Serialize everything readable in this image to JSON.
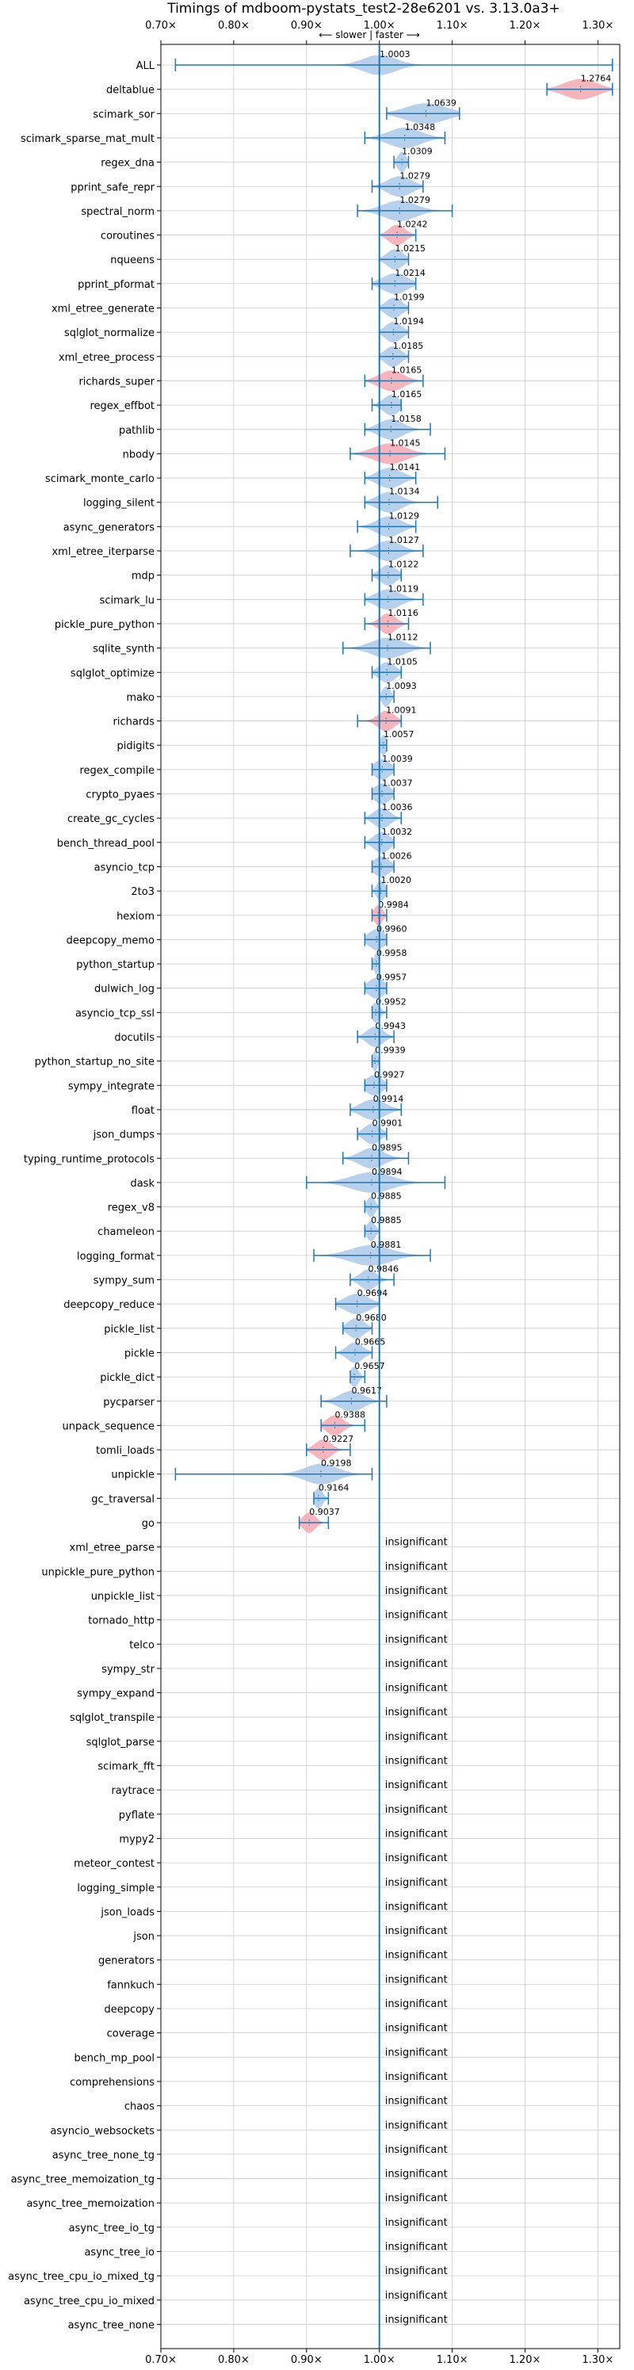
{
  "chart_data": {
    "type": "violin",
    "title": "Timings of mdboom-pystats_test2-28e6201 vs. 3.13.0a3+",
    "direction_hint": "⟵ slower | faster ⟶",
    "xlim": [
      0.7,
      1.33
    ],
    "xticks": [
      0.7,
      0.8,
      0.9,
      1.0,
      1.1,
      1.2,
      1.3
    ],
    "xtick_labels": [
      "0.70×",
      "0.80×",
      "0.90×",
      "1.00×",
      "1.10×",
      "1.20×",
      "1.30×"
    ],
    "reference_line": 1.0,
    "grid": true,
    "colors": {
      "faster": "#aac8e8",
      "slower": "#f4a7b0",
      "line": "#1f77b4",
      "grid": "#cccccc"
    },
    "insignificant_label": "insignificant",
    "benchmarks": [
      {
        "name": "ALL",
        "value": 1.0003,
        "label": "1.0003",
        "min": 0.72,
        "max": 1.32,
        "width": 0.04,
        "color": "faster"
      },
      {
        "name": "deltablue",
        "value": 1.2764,
        "label": "1.2764",
        "min": 1.23,
        "max": 1.32,
        "width": 0.04,
        "color": "slower"
      },
      {
        "name": "scimark_sor",
        "value": 1.0639,
        "label": "1.0639",
        "min": 1.01,
        "max": 1.11,
        "width": 0.05,
        "color": "faster"
      },
      {
        "name": "scimark_sparse_mat_mult",
        "value": 1.0348,
        "label": "1.0348",
        "min": 0.98,
        "max": 1.09,
        "width": 0.04,
        "color": "faster"
      },
      {
        "name": "regex_dna",
        "value": 1.0309,
        "label": "1.0309",
        "min": 1.02,
        "max": 1.04,
        "width": 0.01,
        "color": "faster"
      },
      {
        "name": "pprint_safe_repr",
        "value": 1.0279,
        "label": "1.0279",
        "min": 0.99,
        "max": 1.06,
        "width": 0.03,
        "color": "faster"
      },
      {
        "name": "spectral_norm",
        "value": 1.0279,
        "label": "1.0279",
        "min": 0.97,
        "max": 1.1,
        "width": 0.04,
        "color": "faster"
      },
      {
        "name": "coroutines",
        "value": 1.0242,
        "label": "1.0242",
        "min": 1.0,
        "max": 1.05,
        "width": 0.02,
        "color": "slower"
      },
      {
        "name": "nqueens",
        "value": 1.0215,
        "label": "1.0215",
        "min": 1.0,
        "max": 1.04,
        "width": 0.02,
        "color": "faster"
      },
      {
        "name": "pprint_pformat",
        "value": 1.0214,
        "label": "1.0214",
        "min": 0.99,
        "max": 1.05,
        "width": 0.03,
        "color": "faster"
      },
      {
        "name": "xml_etree_generate",
        "value": 1.0199,
        "label": "1.0199",
        "min": 1.0,
        "max": 1.04,
        "width": 0.02,
        "color": "faster"
      },
      {
        "name": "sqlglot_normalize",
        "value": 1.0194,
        "label": "1.0194",
        "min": 1.0,
        "max": 1.04,
        "width": 0.02,
        "color": "faster"
      },
      {
        "name": "xml_etree_process",
        "value": 1.0185,
        "label": "1.0185",
        "min": 1.0,
        "max": 1.04,
        "width": 0.02,
        "color": "faster"
      },
      {
        "name": "richards_super",
        "value": 1.0165,
        "label": "1.0165",
        "min": 0.98,
        "max": 1.06,
        "width": 0.03,
        "color": "slower"
      },
      {
        "name": "regex_effbot",
        "value": 1.0165,
        "label": "1.0165",
        "min": 0.99,
        "max": 1.03,
        "width": 0.02,
        "color": "faster"
      },
      {
        "name": "pathlib",
        "value": 1.0158,
        "label": "1.0158",
        "min": 0.98,
        "max": 1.07,
        "width": 0.03,
        "color": "faster"
      },
      {
        "name": "nbody",
        "value": 1.0145,
        "label": "1.0145",
        "min": 0.96,
        "max": 1.09,
        "width": 0.04,
        "color": "slower"
      },
      {
        "name": "scimark_monte_carlo",
        "value": 1.0141,
        "label": "1.0141",
        "min": 0.98,
        "max": 1.05,
        "width": 0.03,
        "color": "faster"
      },
      {
        "name": "logging_silent",
        "value": 1.0134,
        "label": "1.0134",
        "min": 0.98,
        "max": 1.08,
        "width": 0.03,
        "color": "faster"
      },
      {
        "name": "async_generators",
        "value": 1.0129,
        "label": "1.0129",
        "min": 0.97,
        "max": 1.05,
        "width": 0.03,
        "color": "faster"
      },
      {
        "name": "xml_etree_iterparse",
        "value": 1.0127,
        "label": "1.0127",
        "min": 0.96,
        "max": 1.06,
        "width": 0.03,
        "color": "faster"
      },
      {
        "name": "mdp",
        "value": 1.0122,
        "label": "1.0122",
        "min": 0.99,
        "max": 1.03,
        "width": 0.02,
        "color": "faster"
      },
      {
        "name": "scimark_lu",
        "value": 1.0119,
        "label": "1.0119",
        "min": 0.98,
        "max": 1.06,
        "width": 0.03,
        "color": "faster"
      },
      {
        "name": "pickle_pure_python",
        "value": 1.0116,
        "label": "1.0116",
        "min": 0.98,
        "max": 1.04,
        "width": 0.02,
        "color": "slower"
      },
      {
        "name": "sqlite_synth",
        "value": 1.0112,
        "label": "1.0112",
        "min": 0.95,
        "max": 1.07,
        "width": 0.04,
        "color": "faster"
      },
      {
        "name": "sqlglot_optimize",
        "value": 1.0105,
        "label": "1.0105",
        "min": 0.99,
        "max": 1.03,
        "width": 0.02,
        "color": "faster"
      },
      {
        "name": "mako",
        "value": 1.0093,
        "label": "1.0093",
        "min": 1.0,
        "max": 1.02,
        "width": 0.01,
        "color": "faster"
      },
      {
        "name": "richards",
        "value": 1.0091,
        "label": "1.0091",
        "min": 0.97,
        "max": 1.03,
        "width": 0.02,
        "color": "slower"
      },
      {
        "name": "pidigits",
        "value": 1.0057,
        "label": "1.0057",
        "min": 1.0,
        "max": 1.01,
        "width": 0.008,
        "color": "faster"
      },
      {
        "name": "regex_compile",
        "value": 1.0039,
        "label": "1.0039",
        "min": 0.99,
        "max": 1.02,
        "width": 0.02,
        "color": "faster"
      },
      {
        "name": "crypto_pyaes",
        "value": 1.0037,
        "label": "1.0037",
        "min": 0.99,
        "max": 1.02,
        "width": 0.02,
        "color": "faster"
      },
      {
        "name": "create_gc_cycles",
        "value": 1.0036,
        "label": "1.0036",
        "min": 0.98,
        "max": 1.03,
        "width": 0.02,
        "color": "faster"
      },
      {
        "name": "bench_thread_pool",
        "value": 1.0032,
        "label": "1.0032",
        "min": 0.98,
        "max": 1.02,
        "width": 0.02,
        "color": "faster"
      },
      {
        "name": "asyncio_tcp",
        "value": 1.0026,
        "label": "1.0026",
        "min": 0.99,
        "max": 1.02,
        "width": 0.02,
        "color": "faster"
      },
      {
        "name": "2to3",
        "value": 1.002,
        "label": "1.0020",
        "min": 0.99,
        "max": 1.01,
        "width": 0.01,
        "color": "faster"
      },
      {
        "name": "hexiom",
        "value": 0.9984,
        "label": "0.9984",
        "min": 0.99,
        "max": 1.01,
        "width": 0.01,
        "color": "slower"
      },
      {
        "name": "deepcopy_memo",
        "value": 0.996,
        "label": "0.9960",
        "min": 0.98,
        "max": 1.01,
        "width": 0.02,
        "color": "faster"
      },
      {
        "name": "python_startup",
        "value": 0.9958,
        "label": "0.9958",
        "min": 0.99,
        "max": 1.0,
        "width": 0.006,
        "color": "faster"
      },
      {
        "name": "dulwich_log",
        "value": 0.9957,
        "label": "0.9957",
        "min": 0.98,
        "max": 1.01,
        "width": 0.02,
        "color": "faster"
      },
      {
        "name": "asyncio_tcp_ssl",
        "value": 0.9952,
        "label": "0.9952",
        "min": 0.99,
        "max": 1.01,
        "width": 0.01,
        "color": "faster"
      },
      {
        "name": "docutils",
        "value": 0.9943,
        "label": "0.9943",
        "min": 0.97,
        "max": 1.02,
        "width": 0.02,
        "color": "faster"
      },
      {
        "name": "python_startup_no_site",
        "value": 0.9939,
        "label": "0.9939",
        "min": 0.99,
        "max": 1.0,
        "width": 0.006,
        "color": "faster"
      },
      {
        "name": "sympy_integrate",
        "value": 0.9927,
        "label": "0.9927",
        "min": 0.98,
        "max": 1.01,
        "width": 0.02,
        "color": "faster"
      },
      {
        "name": "float",
        "value": 0.9914,
        "label": "0.9914",
        "min": 0.96,
        "max": 1.03,
        "width": 0.03,
        "color": "faster"
      },
      {
        "name": "json_dumps",
        "value": 0.9901,
        "label": "0.9901",
        "min": 0.97,
        "max": 1.01,
        "width": 0.02,
        "color": "faster"
      },
      {
        "name": "typing_runtime_protocols",
        "value": 0.9895,
        "label": "0.9895",
        "min": 0.95,
        "max": 1.04,
        "width": 0.03,
        "color": "faster"
      },
      {
        "name": "dask",
        "value": 0.9894,
        "label": "0.9894",
        "min": 0.9,
        "max": 1.09,
        "width": 0.05,
        "color": "faster"
      },
      {
        "name": "regex_v8",
        "value": 0.9885,
        "label": "0.9885",
        "min": 0.98,
        "max": 1.0,
        "width": 0.01,
        "color": "faster"
      },
      {
        "name": "chameleon",
        "value": 0.9885,
        "label": "0.9885",
        "min": 0.98,
        "max": 1.0,
        "width": 0.01,
        "color": "faster"
      },
      {
        "name": "logging_format",
        "value": 0.9881,
        "label": "0.9881",
        "min": 0.91,
        "max": 1.07,
        "width": 0.05,
        "color": "faster"
      },
      {
        "name": "sympy_sum",
        "value": 0.9846,
        "label": "0.9846",
        "min": 0.96,
        "max": 1.02,
        "width": 0.02,
        "color": "faster"
      },
      {
        "name": "deepcopy_reduce",
        "value": 0.9694,
        "label": "0.9694",
        "min": 0.94,
        "max": 1.0,
        "width": 0.03,
        "color": "faster"
      },
      {
        "name": "pickle_list",
        "value": 0.968,
        "label": "0.9680",
        "min": 0.95,
        "max": 0.99,
        "width": 0.02,
        "color": "faster"
      },
      {
        "name": "pickle",
        "value": 0.9665,
        "label": "0.9665",
        "min": 0.94,
        "max": 0.99,
        "width": 0.02,
        "color": "faster"
      },
      {
        "name": "pickle_dict",
        "value": 0.9657,
        "label": "0.9657",
        "min": 0.96,
        "max": 0.98,
        "width": 0.01,
        "color": "faster"
      },
      {
        "name": "pycparser",
        "value": 0.9617,
        "label": "0.9617",
        "min": 0.92,
        "max": 1.01,
        "width": 0.03,
        "color": "faster"
      },
      {
        "name": "unpack_sequence",
        "value": 0.9388,
        "label": "0.9388",
        "min": 0.92,
        "max": 0.98,
        "width": 0.02,
        "color": "slower"
      },
      {
        "name": "tomli_loads",
        "value": 0.9227,
        "label": "0.9227",
        "min": 0.9,
        "max": 0.96,
        "width": 0.02,
        "color": "slower"
      },
      {
        "name": "unpickle",
        "value": 0.9198,
        "label": "0.9198",
        "min": 0.72,
        "max": 0.99,
        "width": 0.04,
        "color": "faster"
      },
      {
        "name": "gc_traversal",
        "value": 0.9164,
        "label": "0.9164",
        "min": 0.91,
        "max": 0.93,
        "width": 0.01,
        "color": "faster"
      },
      {
        "name": "go",
        "value": 0.9037,
        "label": "0.9037",
        "min": 0.89,
        "max": 0.93,
        "width": 0.015,
        "color": "slower"
      }
    ],
    "insignificant": [
      "xml_etree_parse",
      "unpickle_pure_python",
      "unpickle_list",
      "tornado_http",
      "telco",
      "sympy_str",
      "sympy_expand",
      "sqlglot_transpile",
      "sqlglot_parse",
      "scimark_fft",
      "raytrace",
      "pyflate",
      "mypy2",
      "meteor_contest",
      "logging_simple",
      "json_loads",
      "json",
      "generators",
      "fannkuch",
      "deepcopy",
      "coverage",
      "bench_mp_pool",
      "comprehensions",
      "chaos",
      "asyncio_websockets",
      "async_tree_none_tg",
      "async_tree_memoization_tg",
      "async_tree_memoization",
      "async_tree_io_tg",
      "async_tree_io",
      "async_tree_cpu_io_mixed_tg",
      "async_tree_cpu_io_mixed",
      "async_tree_none"
    ]
  }
}
